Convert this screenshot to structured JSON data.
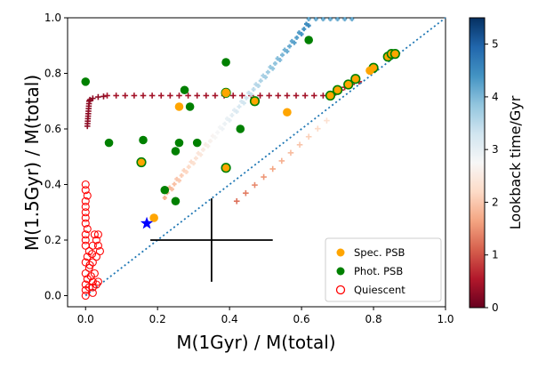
{
  "chart_data": {
    "type": "scatter",
    "xlabel": "M(1Gyr) / M(total)",
    "ylabel": "M(1.5Gyr) / M(total)",
    "xlim": [
      -0.05,
      1.0
    ],
    "ylim": [
      -0.04,
      1.0
    ],
    "xticks": [
      "0.0",
      "0.2",
      "0.4",
      "0.6",
      "0.8",
      "1.0"
    ],
    "yticks": [
      "0.0",
      "0.2",
      "0.4",
      "0.6",
      "0.8",
      "1.0"
    ],
    "colorbar": {
      "label": "Lookback time/Gyr",
      "range": [
        0,
        5.5
      ],
      "ticks": [
        "0",
        "1",
        "2",
        "3",
        "4",
        "5"
      ],
      "colormap": "RdBu"
    },
    "legend": {
      "position": "bottom-right",
      "entries": [
        {
          "label": "Spec. PSB",
          "color": "#ffa500",
          "marker": "filled-circle"
        },
        {
          "label": "Phot. PSB",
          "color": "#008000",
          "marker": "filled-circle"
        },
        {
          "label": "Quiescent",
          "color": "#ff0000",
          "marker": "open-circle"
        }
      ]
    },
    "one_to_one_line": {
      "from": [
        0.0,
        0.0
      ],
      "to": [
        1.0,
        1.0
      ],
      "style": "dotted",
      "color": "#1f77b4"
    },
    "spec_psb": [
      [
        0.19,
        0.28
      ],
      [
        0.26,
        0.68
      ],
      [
        0.39,
        0.73
      ],
      [
        0.56,
        0.66
      ],
      [
        0.79,
        0.81
      ]
    ],
    "phot_psb": [
      [
        0.0,
        0.77
      ],
      [
        0.065,
        0.55
      ],
      [
        0.16,
        0.56
      ],
      [
        0.22,
        0.38
      ],
      [
        0.25,
        0.34
      ],
      [
        0.25,
        0.52
      ],
      [
        0.26,
        0.55
      ],
      [
        0.275,
        0.74
      ],
      [
        0.29,
        0.68
      ],
      [
        0.31,
        0.55
      ],
      [
        0.39,
        0.84
      ],
      [
        0.43,
        0.6
      ],
      [
        0.62,
        0.92
      ]
    ],
    "phot_psb_orange_fill": [
      [
        0.155,
        0.48
      ],
      [
        0.39,
        0.46
      ],
      [
        0.39,
        0.73
      ],
      [
        0.47,
        0.7
      ],
      [
        0.68,
        0.72
      ],
      [
        0.7,
        0.74
      ],
      [
        0.73,
        0.76
      ],
      [
        0.75,
        0.78
      ],
      [
        0.8,
        0.82
      ],
      [
        0.84,
        0.86
      ],
      [
        0.85,
        0.87
      ],
      [
        0.86,
        0.87
      ]
    ],
    "quiescent": [
      [
        0.0,
        0.0
      ],
      [
        0.0,
        0.02
      ],
      [
        0.0,
        0.04
      ],
      [
        0.005,
        0.06
      ],
      [
        0.0,
        0.08
      ],
      [
        0.01,
        0.1
      ],
      [
        0.0,
        0.12
      ],
      [
        0.005,
        0.14
      ],
      [
        0.01,
        0.16
      ],
      [
        0.0,
        0.18
      ],
      [
        0.0,
        0.2
      ],
      [
        0.0,
        0.22
      ],
      [
        0.005,
        0.24
      ],
      [
        0.0,
        0.26
      ],
      [
        0.0,
        0.28
      ],
      [
        0.0,
        0.3
      ],
      [
        0.0,
        0.32
      ],
      [
        0.0,
        0.34
      ],
      [
        0.005,
        0.36
      ],
      [
        0.0,
        0.38
      ],
      [
        0.0,
        0.4
      ],
      [
        0.02,
        0.01
      ],
      [
        0.02,
        0.03
      ],
      [
        0.02,
        0.05
      ],
      [
        0.025,
        0.08
      ],
      [
        0.02,
        0.12
      ],
      [
        0.02,
        0.18
      ],
      [
        0.025,
        0.22
      ],
      [
        0.03,
        0.14
      ],
      [
        0.03,
        0.2
      ],
      [
        0.035,
        0.18
      ],
      [
        0.035,
        0.22
      ],
      [
        0.04,
        0.16
      ],
      [
        0.01,
        0.03
      ],
      [
        0.015,
        0.07
      ],
      [
        0.012,
        0.11
      ],
      [
        0.018,
        0.15
      ],
      [
        0.03,
        0.04
      ],
      [
        0.035,
        0.05
      ]
    ],
    "highlight_star": {
      "x": 0.17,
      "y": 0.26,
      "color": "#0000ff"
    },
    "error_cross": {
      "x": 0.35,
      "y": 0.2,
      "xerr": 0.17,
      "yerr": 0.15
    }
  }
}
